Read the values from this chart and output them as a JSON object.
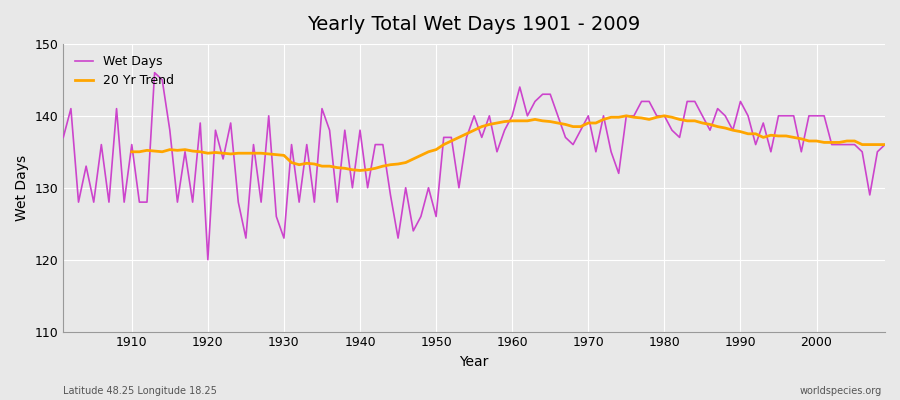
{
  "title": "Yearly Total Wet Days 1901 - 2009",
  "xlabel": "Year",
  "ylabel": "Wet Days",
  "footnote_left": "Latitude 48.25 Longitude 18.25",
  "footnote_right": "worldspecies.org",
  "legend_wet": "Wet Days",
  "legend_trend": "20 Yr Trend",
  "ylim": [
    110,
    150
  ],
  "xlim": [
    1901,
    2009
  ],
  "yticks": [
    110,
    120,
    130,
    140,
    150
  ],
  "xticks": [
    1910,
    1920,
    1930,
    1940,
    1950,
    1960,
    1970,
    1980,
    1990,
    2000
  ],
  "wet_color": "#CC44CC",
  "trend_color": "#FFA500",
  "bg_color": "#E8E8E8",
  "grid_color": "#FFFFFF",
  "years": [
    1901,
    1902,
    1903,
    1904,
    1905,
    1906,
    1907,
    1908,
    1909,
    1910,
    1911,
    1912,
    1913,
    1914,
    1915,
    1916,
    1917,
    1918,
    1919,
    1920,
    1921,
    1922,
    1923,
    1924,
    1925,
    1926,
    1927,
    1928,
    1929,
    1930,
    1931,
    1932,
    1933,
    1934,
    1935,
    1936,
    1937,
    1938,
    1939,
    1940,
    1941,
    1942,
    1943,
    1944,
    1945,
    1946,
    1947,
    1948,
    1949,
    1950,
    1951,
    1952,
    1953,
    1954,
    1955,
    1956,
    1957,
    1958,
    1959,
    1960,
    1961,
    1962,
    1963,
    1964,
    1965,
    1966,
    1967,
    1968,
    1969,
    1970,
    1971,
    1972,
    1973,
    1974,
    1975,
    1976,
    1977,
    1978,
    1979,
    1980,
    1981,
    1982,
    1983,
    1984,
    1985,
    1986,
    1987,
    1988,
    1989,
    1990,
    1991,
    1992,
    1993,
    1994,
    1995,
    1996,
    1997,
    1998,
    1999,
    2000,
    2001,
    2002,
    2003,
    2004,
    2005,
    2006,
    2007,
    2008,
    2009
  ],
  "wet_days": [
    137,
    141,
    128,
    133,
    128,
    136,
    128,
    141,
    128,
    136,
    128,
    128,
    146,
    145,
    138,
    128,
    135,
    128,
    139,
    120,
    138,
    134,
    139,
    128,
    123,
    136,
    128,
    140,
    126,
    123,
    136,
    128,
    136,
    128,
    141,
    138,
    128,
    138,
    130,
    138,
    130,
    136,
    136,
    129,
    123,
    130,
    124,
    126,
    130,
    126,
    137,
    137,
    130,
    137,
    140,
    137,
    140,
    135,
    138,
    140,
    144,
    140,
    142,
    143,
    143,
    140,
    137,
    136,
    138,
    140,
    135,
    140,
    135,
    132,
    140,
    140,
    142,
    142,
    140,
    140,
    138,
    137,
    142,
    142,
    140,
    138,
    141,
    140,
    138,
    142,
    140,
    136,
    139,
    135,
    140,
    140,
    140,
    135,
    140,
    140,
    140,
    136,
    136,
    136,
    136,
    135,
    129,
    135,
    136
  ],
  "trend_days": [
    null,
    null,
    null,
    null,
    null,
    null,
    null,
    null,
    null,
    135,
    135,
    135.2,
    135.1,
    135.0,
    135.3,
    135.2,
    135.3,
    135.1,
    135.0,
    134.8,
    134.9,
    134.8,
    134.7,
    134.8,
    134.8,
    134.8,
    134.8,
    134.7,
    134.6,
    134.5,
    133.5,
    133.2,
    133.4,
    133.3,
    133.0,
    133.0,
    132.8,
    132.7,
    132.5,
    132.4,
    132.5,
    132.7,
    133.0,
    133.2,
    133.3,
    133.5,
    134.0,
    134.5,
    135.0,
    135.3,
    136.0,
    136.5,
    137.0,
    137.5,
    138.0,
    138.5,
    138.8,
    139.0,
    139.2,
    139.3,
    139.3,
    139.3,
    139.5,
    139.3,
    139.2,
    139.0,
    138.8,
    138.5,
    138.5,
    139.0,
    139.0,
    139.5,
    139.8,
    139.8,
    140.0,
    139.8,
    139.7,
    139.5,
    139.8,
    140.0,
    139.8,
    139.5,
    139.3,
    139.3,
    139.0,
    138.8,
    138.5,
    138.3,
    138.0,
    137.8,
    137.5,
    137.5,
    137.0,
    137.3,
    137.2,
    137.2,
    137.0,
    136.8,
    136.5,
    136.5,
    136.3,
    136.3,
    136.3,
    136.5,
    136.5,
    136.0,
    136.0,
    136.0,
    136.0
  ]
}
